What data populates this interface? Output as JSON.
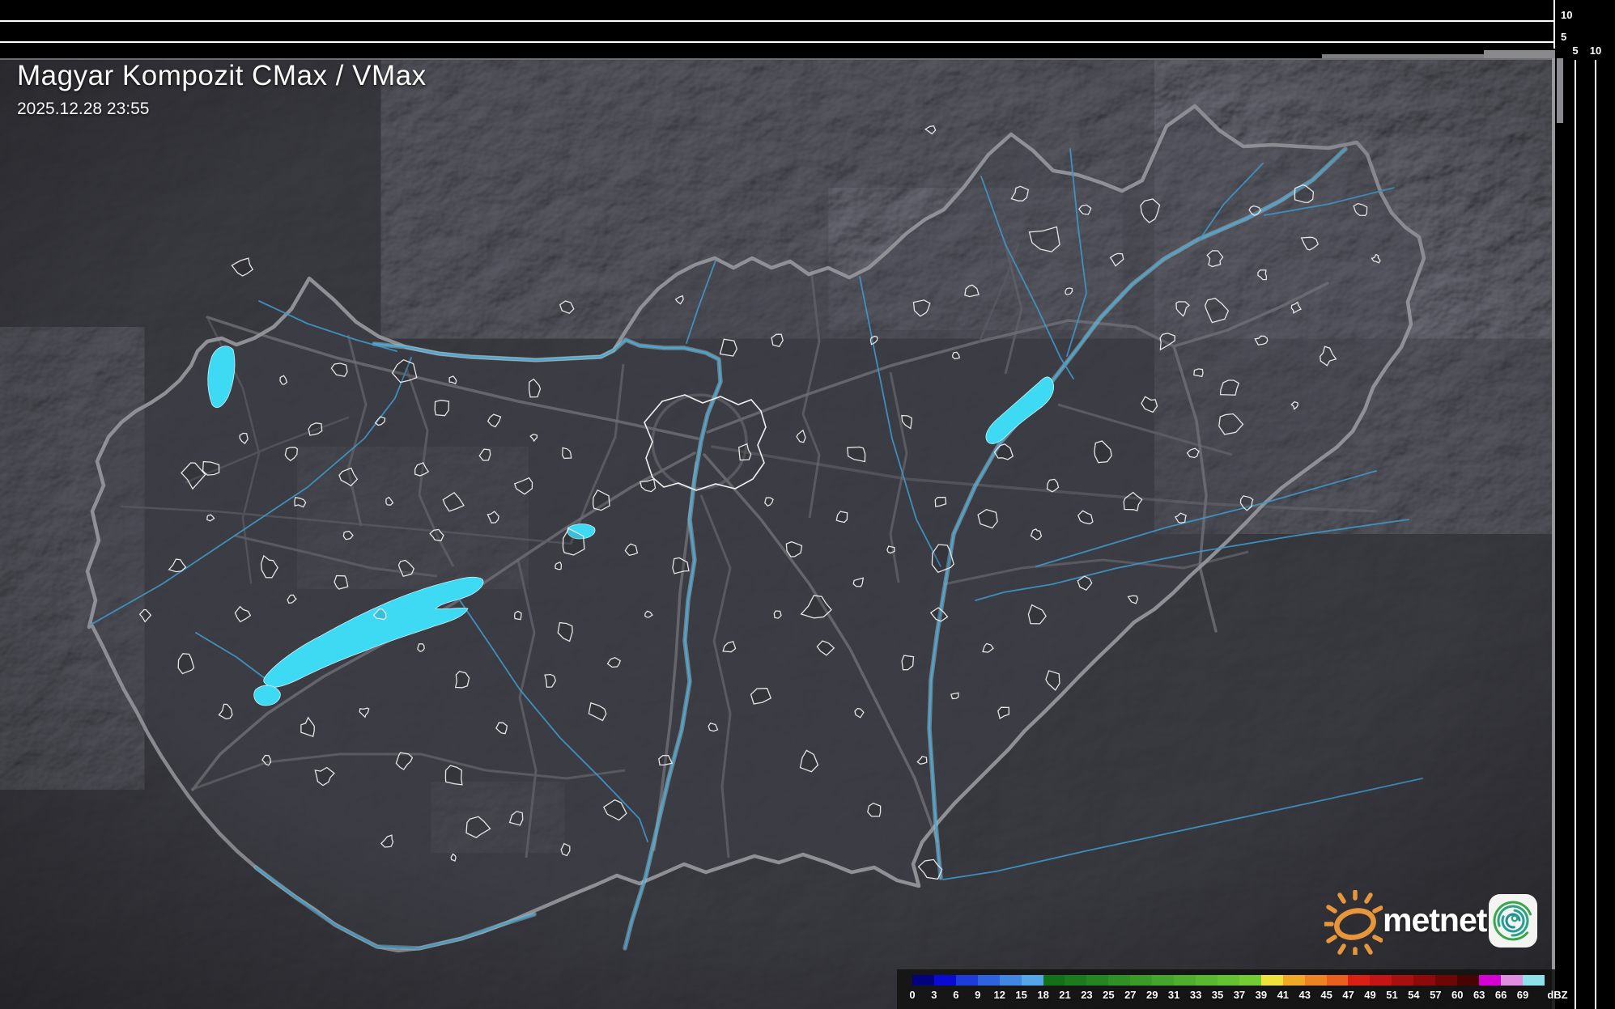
{
  "header": {
    "title": "Magyar Kompozit CMax / VMax",
    "timestamp": "2025.12.28 23:55"
  },
  "panels": {
    "top_axis_labels": [
      "10",
      "5"
    ],
    "right_axis_labels": [
      "5",
      "10"
    ]
  },
  "colorbar": {
    "unit": "dBZ",
    "tick_labels": [
      "0",
      "3",
      "6",
      "9",
      "12",
      "15",
      "18",
      "21",
      "23",
      "25",
      "27",
      "29",
      "31",
      "33",
      "35",
      "37",
      "39",
      "41",
      "43",
      "45",
      "47",
      "49",
      "51",
      "54",
      "57",
      "60",
      "63",
      "66",
      "69"
    ],
    "colors": [
      "#02027e",
      "#0a0ad2",
      "#1e3cd8",
      "#2f62de",
      "#4286e2",
      "#55a5e9",
      "#15701a",
      "#1d7b1d",
      "#278521",
      "#319025",
      "#3b9a28",
      "#45a42b",
      "#4fae2d",
      "#59b82f",
      "#64c231",
      "#74cc34",
      "#efe23b",
      "#f2a827",
      "#ee8321",
      "#e9601c",
      "#da1f14",
      "#c41414",
      "#a80f0f",
      "#8e0a0a",
      "#6e0606",
      "#480303",
      "#d400d4",
      "#e08fe0",
      "#8fe0e8"
    ],
    "accent_water": "#3edaf4"
  },
  "branding": {
    "wordmark": "metnet"
  }
}
